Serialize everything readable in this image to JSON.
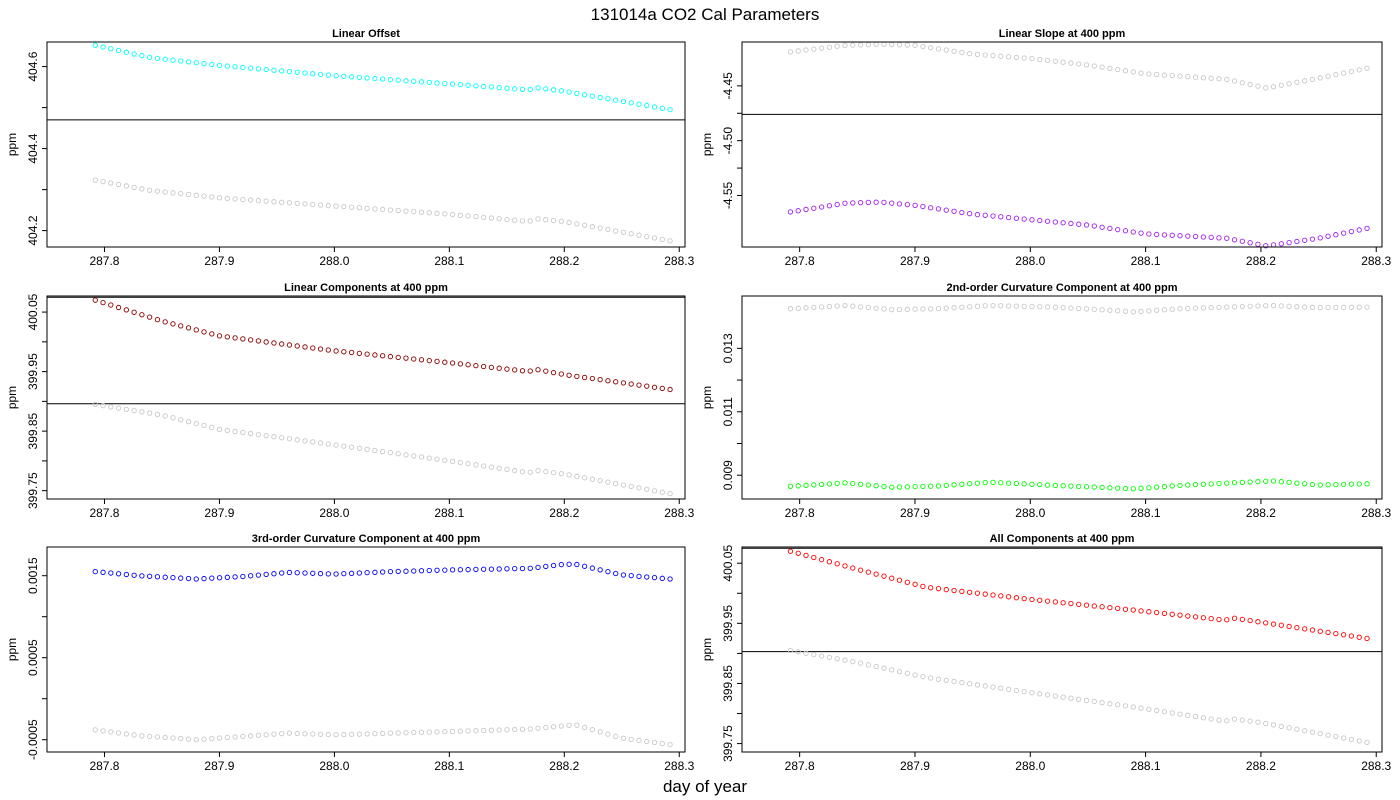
{
  "figure": {
    "title": "131014a   CO2 Cal Parameters",
    "xlabel": "day of year"
  },
  "chart_data": [
    {
      "type": "scatter",
      "title": "Linear Offset",
      "ylabel": "ppm",
      "xlim": [
        287.75,
        288.305
      ],
      "ylim": [
        404.16,
        404.66
      ],
      "xticks": [
        287.8,
        287.9,
        288.0,
        288.1,
        288.2,
        288.3
      ],
      "yticks": [
        404.2,
        404.4,
        404.6
      ],
      "ytick_format": 1,
      "hline": 404.47,
      "series": [
        {
          "color": "#00ffff",
          "n": 75,
          "x_start": 287.792,
          "x_end": 288.292,
          "knots": [
            [
              287.792,
              404.652
            ],
            [
              287.84,
              404.622
            ],
            [
              287.9,
              404.603
            ],
            [
              288.0,
              404.578
            ],
            [
              288.1,
              404.558
            ],
            [
              288.17,
              404.543
            ],
            [
              288.172,
              404.55
            ],
            [
              288.2,
              404.54
            ],
            [
              288.292,
              404.495
            ]
          ]
        },
        {
          "color": "#c8c8c8",
          "n": 75,
          "x_start": 287.792,
          "x_end": 288.292,
          "knots": [
            [
              287.792,
              404.323
            ],
            [
              287.84,
              404.298
            ],
            [
              287.9,
              404.28
            ],
            [
              288.0,
              404.26
            ],
            [
              288.1,
              404.24
            ],
            [
              288.17,
              404.222
            ],
            [
              288.172,
              404.23
            ],
            [
              288.2,
              404.222
            ],
            [
              288.292,
              404.175
            ]
          ]
        }
      ]
    },
    {
      "type": "scatter",
      "title": "Linear Slope at 400 ppm",
      "ylabel": "ppm",
      "xlim": [
        287.75,
        288.305
      ],
      "ylim": [
        -4.597,
        -4.41
      ],
      "xticks": [
        287.8,
        287.9,
        288.0,
        288.1,
        288.2,
        288.3
      ],
      "yticks": [
        -4.55,
        -4.5,
        -4.45
      ],
      "ytick_format": 2,
      "hline": -4.476,
      "series": [
        {
          "color": "#c8c8c8",
          "n": 75,
          "x_start": 287.792,
          "x_end": 288.292,
          "knots": [
            [
              287.792,
              -4.419
            ],
            [
              287.84,
              -4.413
            ],
            [
              287.87,
              -4.412
            ],
            [
              287.9,
              -4.413
            ],
            [
              287.95,
              -4.421
            ],
            [
              288.0,
              -4.425
            ],
            [
              288.05,
              -4.431
            ],
            [
              288.1,
              -4.439
            ],
            [
              288.17,
              -4.444
            ],
            [
              288.205,
              -4.452
            ],
            [
              288.25,
              -4.443
            ],
            [
              288.292,
              -4.434
            ]
          ]
        },
        {
          "color": "#a020f0",
          "n": 75,
          "x_start": 287.792,
          "x_end": 288.292,
          "knots": [
            [
              287.792,
              -4.565
            ],
            [
              287.84,
              -4.557
            ],
            [
              287.87,
              -4.556
            ],
            [
              287.9,
              -4.559
            ],
            [
              287.95,
              -4.567
            ],
            [
              288.0,
              -4.572
            ],
            [
              288.05,
              -4.577
            ],
            [
              288.1,
              -4.585
            ],
            [
              288.17,
              -4.589
            ],
            [
              288.205,
              -4.596
            ],
            [
              288.25,
              -4.589
            ],
            [
              288.292,
              -4.58
            ]
          ]
        }
      ]
    },
    {
      "type": "scatter",
      "title": "Linear Components at 400 ppm",
      "ylabel": "ppm",
      "xlim": [
        287.75,
        288.305
      ],
      "ylim": [
        399.736,
        400.077
      ],
      "xticks": [
        287.8,
        287.9,
        288.0,
        288.1,
        288.2,
        288.3
      ],
      "yticks": [
        399.75,
        399.85,
        399.95,
        400.05
      ],
      "ytick_format": 2,
      "hline": 399.896,
      "hline_top": 400.075,
      "series": [
        {
          "color": "#8b0000",
          "n": 75,
          "x_start": 287.792,
          "x_end": 288.292,
          "knots": [
            [
              287.792,
              400.07
            ],
            [
              287.85,
              400.035
            ],
            [
              287.9,
              400.01
            ],
            [
              288.0,
              399.985
            ],
            [
              288.1,
              399.965
            ],
            [
              288.17,
              399.95
            ],
            [
              288.172,
              399.955
            ],
            [
              288.2,
              399.945
            ],
            [
              288.292,
              399.92
            ]
          ]
        },
        {
          "color": "#c8c8c8",
          "n": 75,
          "x_start": 287.792,
          "x_end": 288.292,
          "knots": [
            [
              287.792,
              399.895
            ],
            [
              287.85,
              399.877
            ],
            [
              287.9,
              399.853
            ],
            [
              288.0,
              399.827
            ],
            [
              288.1,
              399.8
            ],
            [
              288.17,
              399.78
            ],
            [
              288.172,
              399.785
            ],
            [
              288.2,
              399.778
            ],
            [
              288.292,
              399.745
            ]
          ]
        }
      ]
    },
    {
      "type": "scatter",
      "title": "2nd-order Curvature Component at 400 ppm",
      "ylabel": "ppm",
      "xlim": [
        287.75,
        288.305
      ],
      "ylim": [
        0.00825,
        0.01465
      ],
      "xticks": [
        287.8,
        287.9,
        288.0,
        288.1,
        288.2,
        288.3
      ],
      "yticks": [
        0.009,
        0.011,
        0.013
      ],
      "ytick_format": 3,
      "series": [
        {
          "color": "#c8c8c8",
          "n": 75,
          "x_start": 287.792,
          "x_end": 288.292,
          "knots": [
            [
              287.792,
              0.01425
            ],
            [
              287.84,
              0.01435
            ],
            [
              287.88,
              0.01422
            ],
            [
              287.92,
              0.01425
            ],
            [
              287.965,
              0.01435
            ],
            [
              288.02,
              0.0143
            ],
            [
              288.06,
              0.01422
            ],
            [
              288.09,
              0.01415
            ],
            [
              288.13,
              0.01425
            ],
            [
              288.17,
              0.0143
            ],
            [
              288.21,
              0.01435
            ],
            [
              288.25,
              0.01428
            ],
            [
              288.292,
              0.0143
            ]
          ]
        },
        {
          "color": "#00ff00",
          "n": 75,
          "x_start": 287.792,
          "x_end": 288.292,
          "knots": [
            [
              287.792,
              0.00865
            ],
            [
              287.84,
              0.00876
            ],
            [
              287.88,
              0.00862
            ],
            [
              287.92,
              0.00866
            ],
            [
              287.965,
              0.00878
            ],
            [
              288.02,
              0.00868
            ],
            [
              288.06,
              0.00862
            ],
            [
              288.09,
              0.00857
            ],
            [
              288.13,
              0.00868
            ],
            [
              288.17,
              0.00875
            ],
            [
              288.21,
              0.00882
            ],
            [
              288.25,
              0.00869
            ],
            [
              288.292,
              0.00873
            ]
          ]
        }
      ]
    },
    {
      "type": "scatter",
      "title": "3rd-order Curvature Component at 400 ppm",
      "ylabel": "ppm",
      "xlim": [
        287.75,
        288.305
      ],
      "ylim": [
        -0.00065,
        0.00185
      ],
      "xticks": [
        287.8,
        287.9,
        288.0,
        288.1,
        288.2,
        288.3
      ],
      "yticks": [
        -0.0005,
        0.0005,
        0.0015
      ],
      "ytick_format": 4,
      "series": [
        {
          "color": "#0000ff",
          "n": 75,
          "x_start": 287.792,
          "x_end": 288.292,
          "knots": [
            [
              287.792,
              0.00155
            ],
            [
              287.83,
              0.0015
            ],
            [
              287.88,
              0.00146
            ],
            [
              287.92,
              0.00149
            ],
            [
              287.96,
              0.00154
            ],
            [
              288.0,
              0.00152
            ],
            [
              288.05,
              0.00155
            ],
            [
              288.1,
              0.00157
            ],
            [
              288.17,
              0.00159
            ],
            [
              288.2,
              0.00164
            ],
            [
              288.21,
              0.00164
            ],
            [
              288.25,
              0.00151
            ],
            [
              288.292,
              0.00146
            ]
          ]
        },
        {
          "color": "#c8c8c8",
          "n": 75,
          "x_start": 287.792,
          "x_end": 288.292,
          "knots": [
            [
              287.792,
              -0.00038
            ],
            [
              287.83,
              -0.00045
            ],
            [
              287.88,
              -0.0005
            ],
            [
              287.92,
              -0.00046
            ],
            [
              287.96,
              -0.00042
            ],
            [
              288.0,
              -0.00044
            ],
            [
              288.05,
              -0.00042
            ],
            [
              288.1,
              -0.0004
            ],
            [
              288.17,
              -0.00037
            ],
            [
              288.2,
              -0.00033
            ],
            [
              288.21,
              -0.00032
            ],
            [
              288.25,
              -0.00048
            ],
            [
              288.292,
              -0.00056
            ]
          ]
        }
      ]
    },
    {
      "type": "scatter",
      "title": "All Components at 400 ppm",
      "ylabel": "ppm",
      "xlim": [
        287.75,
        288.305
      ],
      "ylim": [
        399.736,
        400.077
      ],
      "xticks": [
        287.8,
        287.9,
        288.0,
        288.1,
        288.2,
        288.3
      ],
      "yticks": [
        399.75,
        399.85,
        399.95,
        400.05
      ],
      "ytick_format": 2,
      "hline": 399.903,
      "hline_top": 400.075,
      "series": [
        {
          "color": "#ff0000",
          "n": 75,
          "x_start": 287.792,
          "x_end": 288.292,
          "knots": [
            [
              287.792,
              400.07
            ],
            [
              287.85,
              400.04
            ],
            [
              287.91,
              400.01
            ],
            [
              288.0,
              399.99
            ],
            [
              288.1,
              399.97
            ],
            [
              288.17,
              399.955
            ],
            [
              288.172,
              399.96
            ],
            [
              288.2,
              399.952
            ],
            [
              288.292,
              399.925
            ]
          ]
        },
        {
          "color": "#c8c8c8",
          "n": 75,
          "x_start": 287.792,
          "x_end": 288.292,
          "knots": [
            [
              287.792,
              399.905
            ],
            [
              287.85,
              399.885
            ],
            [
              287.91,
              399.86
            ],
            [
              288.0,
              399.835
            ],
            [
              288.1,
              399.808
            ],
            [
              288.17,
              399.787
            ],
            [
              288.172,
              399.792
            ],
            [
              288.2,
              399.785
            ],
            [
              288.292,
              399.752
            ]
          ]
        }
      ]
    }
  ]
}
